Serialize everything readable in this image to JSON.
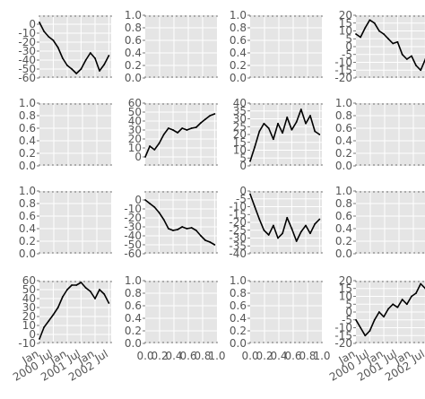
{
  "chart_data": {
    "type": "line",
    "grid": true,
    "line_color": "#000000",
    "background_color": "#e5e5e5",
    "subplots": [
      {
        "row": 0,
        "col": 0,
        "type": "line",
        "x_kind": "date",
        "xlim": [
          "2000-01-01",
          "2002-08-01"
        ],
        "ylim": [
          -60,
          10
        ],
        "yticks": [
          "0",
          "-10",
          "-20",
          "-30",
          "-40",
          "-50",
          "-60"
        ],
        "ytick_values": [
          0,
          -10,
          -20,
          -30,
          -40,
          -50,
          -60
        ],
        "xticks": [],
        "xtick_values": [],
        "x": [
          "2000-01-01",
          "2000-03-01",
          "2000-05-01",
          "2000-07-01",
          "2000-09-01",
          "2000-11-01",
          "2001-01-01",
          "2001-03-01",
          "2001-05-01",
          "2001-07-01",
          "2001-09-01",
          "2001-11-01",
          "2002-01-01",
          "2002-03-01",
          "2002-05-01",
          "2002-07-01"
        ],
        "y": [
          2,
          -8,
          -14,
          -18,
          -26,
          -38,
          -46,
          -50,
          -55,
          -50,
          -40,
          -32,
          -38,
          -52,
          -45,
          -35
        ]
      },
      {
        "row": 0,
        "col": 1,
        "type": "empty",
        "x_kind": "number",
        "xlim": [
          0,
          1
        ],
        "ylim": [
          0,
          1
        ],
        "yticks": [
          "1.0",
          "0.8",
          "0.6",
          "0.4",
          "0.2",
          "0.0"
        ],
        "ytick_values": [
          1.0,
          0.8,
          0.6,
          0.4,
          0.2,
          0.0
        ],
        "xticks": [],
        "xtick_values": [],
        "x": [],
        "y": []
      },
      {
        "row": 0,
        "col": 2,
        "type": "empty",
        "x_kind": "number",
        "xlim": [
          0,
          1
        ],
        "ylim": [
          0,
          1
        ],
        "yticks": [
          "1.0",
          "0.8",
          "0.6",
          "0.4",
          "0.2",
          "0.0"
        ],
        "ytick_values": [
          1.0,
          0.8,
          0.6,
          0.4,
          0.2,
          0.0
        ],
        "xticks": [],
        "xtick_values": [],
        "x": [],
        "y": []
      },
      {
        "row": 0,
        "col": 3,
        "type": "line",
        "x_kind": "date",
        "xlim": [
          "2000-01-01",
          "2002-08-01"
        ],
        "ylim": [
          -20,
          20
        ],
        "yticks": [
          "20",
          "15",
          "10",
          "5",
          "0",
          "-5",
          "-10",
          "-15",
          "-20"
        ],
        "ytick_values": [
          20,
          15,
          10,
          5,
          0,
          -5,
          -10,
          -15,
          -20
        ],
        "xticks": [],
        "xtick_values": [],
        "x": [
          "2000-01-01",
          "2000-03-01",
          "2000-05-01",
          "2000-07-01",
          "2000-09-01",
          "2000-11-01",
          "2001-01-01",
          "2001-03-01",
          "2001-05-01",
          "2001-07-01",
          "2001-09-01",
          "2001-11-01",
          "2002-01-01",
          "2002-03-01",
          "2002-05-01",
          "2002-07-01"
        ],
        "y": [
          8,
          6,
          12,
          17,
          15,
          10,
          8,
          5,
          2,
          3,
          -5,
          -8,
          -6,
          -12,
          -15,
          -8
        ]
      },
      {
        "row": 1,
        "col": 0,
        "type": "empty",
        "x_kind": "number",
        "xlim": [
          0,
          1
        ],
        "ylim": [
          0,
          1
        ],
        "yticks": [
          "1.0",
          "0.8",
          "0.6",
          "0.4",
          "0.2",
          "0.0"
        ],
        "ytick_values": [
          1.0,
          0.8,
          0.6,
          0.4,
          0.2,
          0.0
        ],
        "xticks": [],
        "xtick_values": [],
        "x": [],
        "y": []
      },
      {
        "row": 1,
        "col": 1,
        "type": "line",
        "x_kind": "date",
        "xlim": [
          "2000-01-01",
          "2002-08-01"
        ],
        "ylim": [
          -10,
          60
        ],
        "yticks": [
          "60",
          "50",
          "40",
          "30",
          "20",
          "10",
          "0"
        ],
        "ytick_values": [
          60,
          50,
          40,
          30,
          20,
          10,
          0
        ],
        "xticks": [],
        "xtick_values": [],
        "x": [
          "2000-01-01",
          "2000-03-01",
          "2000-05-01",
          "2000-07-01",
          "2000-09-01",
          "2000-11-01",
          "2001-01-01",
          "2001-03-01",
          "2001-05-01",
          "2001-07-01",
          "2001-09-01",
          "2001-11-01",
          "2002-01-01",
          "2002-03-01",
          "2002-05-01",
          "2002-07-01"
        ],
        "y": [
          0,
          12,
          8,
          15,
          25,
          32,
          30,
          27,
          32,
          30,
          32,
          33,
          38,
          42,
          46,
          48
        ]
      },
      {
        "row": 1,
        "col": 2,
        "type": "line",
        "x_kind": "date",
        "xlim": [
          "2000-01-01",
          "2002-08-01"
        ],
        "ylim": [
          0,
          40
        ],
        "yticks": [
          "40",
          "35",
          "30",
          "25",
          "20",
          "15",
          "10",
          "5",
          "0"
        ],
        "ytick_values": [
          40,
          35,
          30,
          25,
          20,
          15,
          10,
          5,
          0
        ],
        "xticks": [],
        "xtick_values": [],
        "x": [
          "2000-01-01",
          "2000-03-01",
          "2000-05-01",
          "2000-07-01",
          "2000-09-01",
          "2000-11-01",
          "2001-01-01",
          "2001-03-01",
          "2001-05-01",
          "2001-07-01",
          "2001-09-01",
          "2001-11-01",
          "2002-01-01",
          "2002-03-01",
          "2002-05-01",
          "2002-07-01"
        ],
        "y": [
          3,
          12,
          22,
          27,
          24,
          17,
          27,
          21,
          31,
          23,
          28,
          36,
          27,
          32,
          22,
          20
        ]
      },
      {
        "row": 1,
        "col": 3,
        "type": "empty",
        "x_kind": "number",
        "xlim": [
          0,
          1
        ],
        "ylim": [
          0,
          1
        ],
        "yticks": [
          "1.0",
          "0.8",
          "0.6",
          "0.4",
          "0.2",
          "0.0"
        ],
        "ytick_values": [
          1.0,
          0.8,
          0.6,
          0.4,
          0.2,
          0.0
        ],
        "xticks": [],
        "xtick_values": [],
        "x": [],
        "y": []
      },
      {
        "row": 2,
        "col": 0,
        "type": "empty",
        "x_kind": "number",
        "xlim": [
          0,
          1
        ],
        "ylim": [
          0,
          1
        ],
        "yticks": [
          "1.0",
          "0.8",
          "0.6",
          "0.4",
          "0.2",
          "0.0"
        ],
        "ytick_values": [
          1.0,
          0.8,
          0.6,
          0.4,
          0.2,
          0.0
        ],
        "xticks": [],
        "xtick_values": [],
        "x": [],
        "y": []
      },
      {
        "row": 2,
        "col": 1,
        "type": "line",
        "x_kind": "date",
        "xlim": [
          "2000-01-01",
          "2002-08-01"
        ],
        "ylim": [
          -60,
          10
        ],
        "yticks": [
          "0",
          "-10",
          "-20",
          "-30",
          "-40",
          "-50",
          "-60"
        ],
        "ytick_values": [
          0,
          -10,
          -20,
          -30,
          -40,
          -50,
          -60
        ],
        "xticks": [],
        "xtick_values": [],
        "x": [
          "2000-01-01",
          "2000-03-01",
          "2000-05-01",
          "2000-07-01",
          "2000-09-01",
          "2000-11-01",
          "2001-01-01",
          "2001-03-01",
          "2001-05-01",
          "2001-07-01",
          "2001-09-01",
          "2001-11-01",
          "2002-01-01",
          "2002-03-01",
          "2002-05-01",
          "2002-07-01"
        ],
        "y": [
          0,
          -4,
          -8,
          -14,
          -22,
          -32,
          -34,
          -33,
          -30,
          -32,
          -31,
          -34,
          -40,
          -45,
          -47,
          -50
        ]
      },
      {
        "row": 2,
        "col": 2,
        "type": "line",
        "x_kind": "date",
        "xlim": [
          "2000-01-01",
          "2002-08-01"
        ],
        "ylim": [
          -40,
          0
        ],
        "yticks": [
          "0",
          "-5",
          "-10",
          "-15",
          "-20",
          "-25",
          "-30",
          "-35",
          "-40"
        ],
        "ytick_values": [
          0,
          -5,
          -10,
          -15,
          -20,
          -25,
          -30,
          -35,
          -40
        ],
        "xticks": [],
        "xtick_values": [],
        "x": [
          "2000-01-01",
          "2000-03-01",
          "2000-05-01",
          "2000-07-01",
          "2000-09-01",
          "2000-11-01",
          "2001-01-01",
          "2001-03-01",
          "2001-05-01",
          "2001-07-01",
          "2001-09-01",
          "2001-11-01",
          "2002-01-01",
          "2002-03-01",
          "2002-05-01",
          "2002-07-01"
        ],
        "y": [
          -2,
          -10,
          -18,
          -25,
          -28,
          -22,
          -30,
          -27,
          -17,
          -24,
          -32,
          -26,
          -22,
          -27,
          -21,
          -18
        ]
      },
      {
        "row": 2,
        "col": 3,
        "type": "empty",
        "x_kind": "number",
        "xlim": [
          0,
          1
        ],
        "ylim": [
          0,
          1
        ],
        "yticks": [
          "1.0",
          "0.8",
          "0.6",
          "0.4",
          "0.2",
          "0.0"
        ],
        "ytick_values": [
          1.0,
          0.8,
          0.6,
          0.4,
          0.2,
          0.0
        ],
        "xticks": [],
        "xtick_values": [],
        "x": [],
        "y": []
      },
      {
        "row": 3,
        "col": 0,
        "type": "line",
        "x_kind": "date",
        "xlim": [
          "2000-01-01",
          "2002-08-01"
        ],
        "ylim": [
          -10,
          60
        ],
        "yticks": [
          "60",
          "50",
          "40",
          "30",
          "20",
          "10",
          "0",
          "-10"
        ],
        "ytick_values": [
          60,
          50,
          40,
          30,
          20,
          10,
          0,
          -10
        ],
        "xticks": [
          "Jan\n2000",
          "Jul",
          "Jan\n2001",
          "Jul",
          "Jan\n2002",
          "Jul"
        ],
        "xtick_values": [
          "2000-01-01",
          "2000-07-01",
          "2001-01-01",
          "2001-07-01",
          "2002-01-01",
          "2002-07-01"
        ],
        "x": [
          "2000-01-01",
          "2000-03-01",
          "2000-05-01",
          "2000-07-01",
          "2000-09-01",
          "2000-11-01",
          "2001-01-01",
          "2001-03-01",
          "2001-05-01",
          "2001-07-01",
          "2001-09-01",
          "2001-11-01",
          "2002-01-01",
          "2002-03-01",
          "2002-05-01",
          "2002-07-01"
        ],
        "y": [
          -5,
          8,
          15,
          22,
          30,
          42,
          50,
          55,
          55,
          58,
          52,
          48,
          40,
          50,
          45,
          35
        ]
      },
      {
        "row": 3,
        "col": 1,
        "type": "empty",
        "x_kind": "number",
        "xlim": [
          0,
          1
        ],
        "ylim": [
          0,
          1
        ],
        "yticks": [
          "1.0",
          "0.8",
          "0.6",
          "0.4",
          "0.2",
          "0.0"
        ],
        "ytick_values": [
          1.0,
          0.8,
          0.6,
          0.4,
          0.2,
          0.0
        ],
        "xticks": [
          "0.0",
          "0.2",
          "0.4",
          "0.6",
          "0.8",
          "1.0"
        ],
        "xtick_values": [
          0.0,
          0.2,
          0.4,
          0.6,
          0.8,
          1.0
        ],
        "x": [],
        "y": []
      },
      {
        "row": 3,
        "col": 2,
        "type": "empty",
        "x_kind": "number",
        "xlim": [
          0,
          1
        ],
        "ylim": [
          0,
          1
        ],
        "yticks": [
          "1.0",
          "0.8",
          "0.6",
          "0.4",
          "0.2",
          "0.0"
        ],
        "ytick_values": [
          1.0,
          0.8,
          0.6,
          0.4,
          0.2,
          0.0
        ],
        "xticks": [
          "0.0",
          "0.2",
          "0.4",
          "0.6",
          "0.8",
          "1.0"
        ],
        "xtick_values": [
          0.0,
          0.2,
          0.4,
          0.6,
          0.8,
          1.0
        ],
        "x": [],
        "y": []
      },
      {
        "row": 3,
        "col": 3,
        "type": "line",
        "x_kind": "date",
        "xlim": [
          "2000-01-01",
          "2002-08-01"
        ],
        "ylim": [
          -20,
          20
        ],
        "yticks": [
          "20",
          "15",
          "10",
          "5",
          "0",
          "-5",
          "-10",
          "-15",
          "-20"
        ],
        "ytick_values": [
          20,
          15,
          10,
          5,
          0,
          -5,
          -10,
          -15,
          -20
        ],
        "xticks": [
          "Jan\n2000",
          "Jul",
          "Jan\n2001",
          "Jul",
          "Jan\n2002",
          "Jul"
        ],
        "xtick_values": [
          "2000-01-01",
          "2000-07-01",
          "2001-01-01",
          "2001-07-01",
          "2002-01-01",
          "2002-07-01"
        ],
        "x": [
          "2000-01-01",
          "2000-03-01",
          "2000-05-01",
          "2000-07-01",
          "2000-09-01",
          "2000-11-01",
          "2001-01-01",
          "2001-03-01",
          "2001-05-01",
          "2001-07-01",
          "2001-09-01",
          "2001-11-01",
          "2002-01-01",
          "2002-03-01",
          "2002-05-01",
          "2002-07-01"
        ],
        "y": [
          -5,
          -10,
          -15,
          -12,
          -5,
          0,
          -3,
          2,
          5,
          3,
          8,
          5,
          10,
          12,
          18,
          15
        ]
      }
    ]
  }
}
